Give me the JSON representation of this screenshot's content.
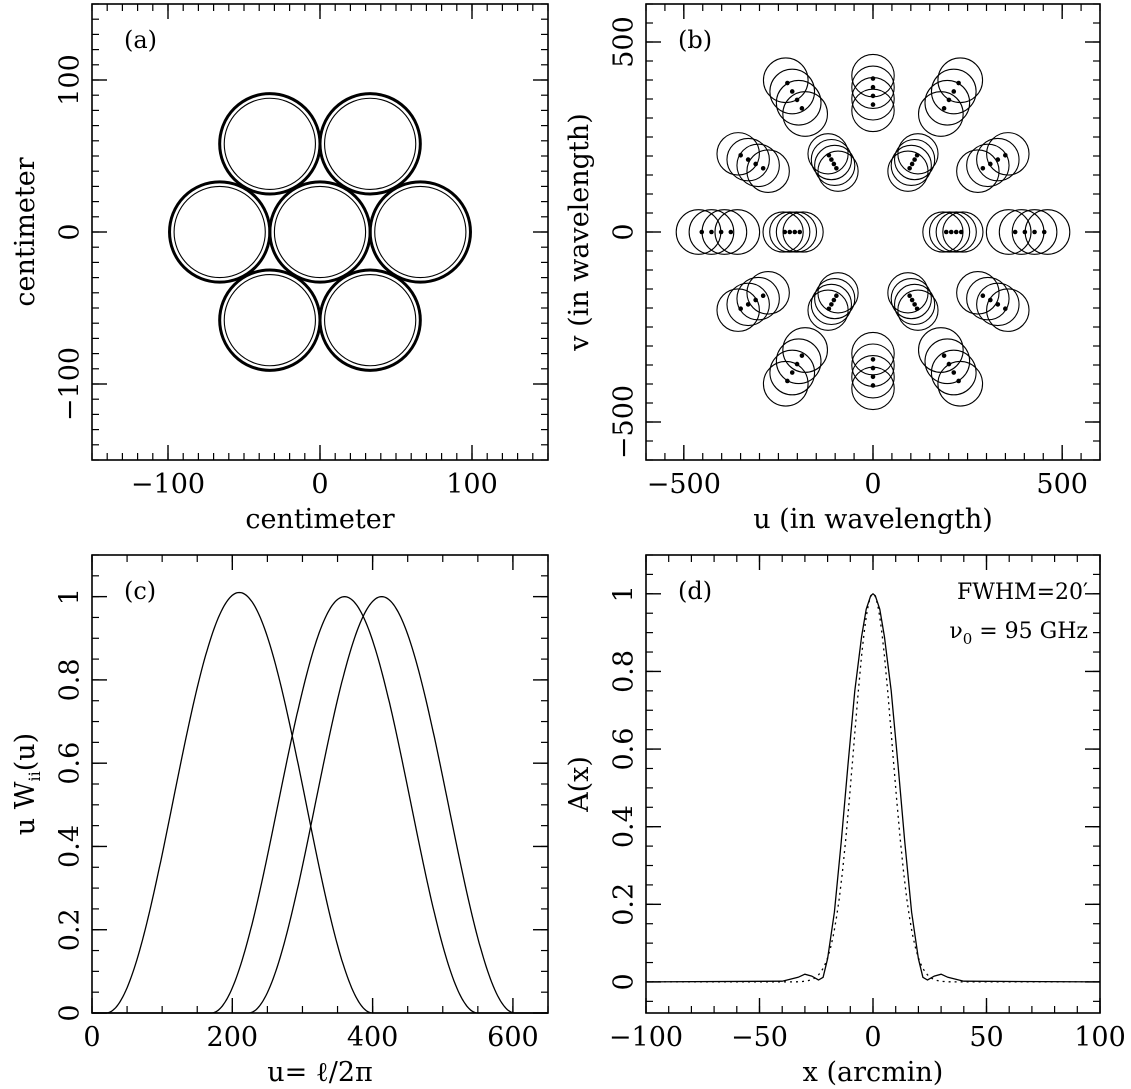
{
  "chart_data": [
    {
      "panel": "(a)",
      "type": "scatter",
      "xlabel": "centimeter",
      "ylabel": "centimeter",
      "xlim": [
        -150,
        150
      ],
      "ylim": [
        -150,
        150
      ],
      "xticks": [
        -100,
        0,
        100
      ],
      "yticks": [
        -100,
        0,
        100
      ],
      "xticklabels": [
        "−100",
        "0",
        "100"
      ],
      "yticklabels": [
        "−100",
        "0",
        "100"
      ],
      "dishes": {
        "centers": [
          [
            -33,
            58
          ],
          [
            33,
            58
          ],
          [
            -66,
            0
          ],
          [
            0,
            0
          ],
          [
            66,
            0
          ],
          [
            -33,
            -58
          ],
          [
            33,
            -58
          ]
        ],
        "outer_radius": 33,
        "inner_radius": 30
      }
    },
    {
      "panel": "(b)",
      "type": "scatter",
      "xlabel": "u (in wavelength)",
      "ylabel": "v (in wavelength)",
      "xlim": [
        -600,
        600
      ],
      "ylim": [
        -600,
        600
      ],
      "xticks": [
        -500,
        0,
        500
      ],
      "yticks": [
        -500,
        0,
        500
      ],
      "xticklabels": [
        "−500",
        "0",
        "500"
      ],
      "yticklabels": [
        "−500",
        "0",
        "500"
      ],
      "baselines": [
        {
          "angle_deg": 0,
          "distances": [
            206,
            220,
            234
          ],
          "scaled": true
        },
        {
          "angle_deg": 60,
          "distances": [
            206,
            220,
            234
          ],
          "scaled": true
        },
        {
          "angle_deg": 120,
          "distances": [
            206,
            220,
            234
          ],
          "scaled": true
        },
        {
          "angle_deg": 180,
          "distances": [
            206,
            220,
            234
          ],
          "scaled": true
        },
        {
          "angle_deg": 240,
          "distances": [
            206,
            220,
            234
          ],
          "scaled": true
        },
        {
          "angle_deg": 300,
          "distances": [
            206,
            220,
            234
          ],
          "scaled": true
        },
        {
          "angle_deg": 30,
          "distances": [
            358,
            381,
            404
          ],
          "scaled": true
        },
        {
          "angle_deg": 90,
          "distances": [
            358,
            381,
            404
          ],
          "scaled": true
        },
        {
          "angle_deg": 150,
          "distances": [
            358,
            381,
            404
          ],
          "scaled": true
        },
        {
          "angle_deg": 210,
          "distances": [
            358,
            381,
            404
          ],
          "scaled": true
        },
        {
          "angle_deg": 270,
          "distances": [
            358,
            381,
            404
          ],
          "scaled": true
        },
        {
          "angle_deg": 330,
          "distances": [
            358,
            381,
            404
          ],
          "scaled": true
        },
        {
          "angle_deg": 0,
          "distances": [
            412,
            427,
            442
          ],
          "scaled": true
        },
        {
          "angle_deg": 60,
          "distances": [
            412,
            427,
            442
          ],
          "scaled": true
        },
        {
          "angle_deg": 120,
          "distances": [
            412,
            427,
            442
          ],
          "scaled": true
        },
        {
          "angle_deg": 180,
          "distances": [
            412,
            427,
            442
          ],
          "scaled": true
        },
        {
          "angle_deg": 240,
          "distances": [
            412,
            427,
            442
          ],
          "scaled": true
        },
        {
          "angle_deg": 300,
          "distances": [
            412,
            427,
            442
          ],
          "scaled": true
        }
      ],
      "points": {
        "dot_fraction": [
          0.88,
          0.94,
          1.0,
          1.06
        ],
        "circle_fraction": [
          0.84,
          0.92,
          1.0,
          1.08
        ],
        "circle_radius": 118
      }
    },
    {
      "panel": "(c)",
      "type": "line",
      "xlabel": "u= ℓ/2π",
      "ylabel": "u W",
      "ylabel_sub": "ii",
      "ylabel_tail": "(u)",
      "xlim": [
        0,
        650
      ],
      "ylim": [
        0,
        1.1
      ],
      "xticks": [
        0,
        200,
        400,
        600
      ],
      "yticks": [
        0,
        0.2,
        0.4,
        0.6,
        0.8,
        1
      ],
      "xticklabels": [
        "0",
        "200",
        "400",
        "600"
      ],
      "yticklabels": [
        "0",
        "0.2",
        "0.4",
        "0.6",
        "0.8",
        "1"
      ],
      "series": [
        {
          "center": 210,
          "peak": 1.01,
          "width": 190
        },
        {
          "center": 360,
          "peak": 1.0,
          "width": 190
        },
        {
          "center": 413,
          "peak": 1.0,
          "width": 190
        }
      ]
    },
    {
      "panel": "(d)",
      "type": "line",
      "xlabel": "x (arcmin)",
      "ylabel": "A(x)",
      "xlim": [
        -100,
        100
      ],
      "ylim": [
        -0.08,
        1.1
      ],
      "xticks": [
        -100,
        -50,
        0,
        50,
        100
      ],
      "yticks": [
        0,
        0.2,
        0.4,
        0.6,
        0.8,
        1
      ],
      "xticklabels": [
        "−100",
        "−50",
        "0",
        "50",
        "100"
      ],
      "yticklabels": [
        "0",
        "0.2",
        "0.4",
        "0.6",
        "0.8",
        "1"
      ],
      "annotations": [
        "FWHM=20′",
        "ν",
        "0",
        "= 95 GHz"
      ],
      "series": [
        {
          "style": "solid",
          "x": [
            -100,
            -40,
            -33,
            -30,
            -27,
            -24,
            -22,
            -20,
            -17,
            -14,
            -11,
            -8,
            -5,
            -3,
            -1,
            0,
            1,
            3,
            5,
            8,
            11,
            14,
            17,
            20,
            22,
            24,
            27,
            30,
            33,
            40,
            100
          ],
          "y": [
            0,
            0.002,
            0.012,
            0.02,
            0.015,
            0.005,
            0.012,
            0.06,
            0.18,
            0.36,
            0.56,
            0.75,
            0.89,
            0.96,
            0.995,
            1.0,
            0.995,
            0.96,
            0.89,
            0.75,
            0.56,
            0.36,
            0.18,
            0.06,
            0.012,
            0.005,
            0.015,
            0.02,
            0.012,
            0.002,
            0
          ]
        },
        {
          "style": "dotted",
          "gaussian_fwhm": 20
        }
      ]
    }
  ]
}
